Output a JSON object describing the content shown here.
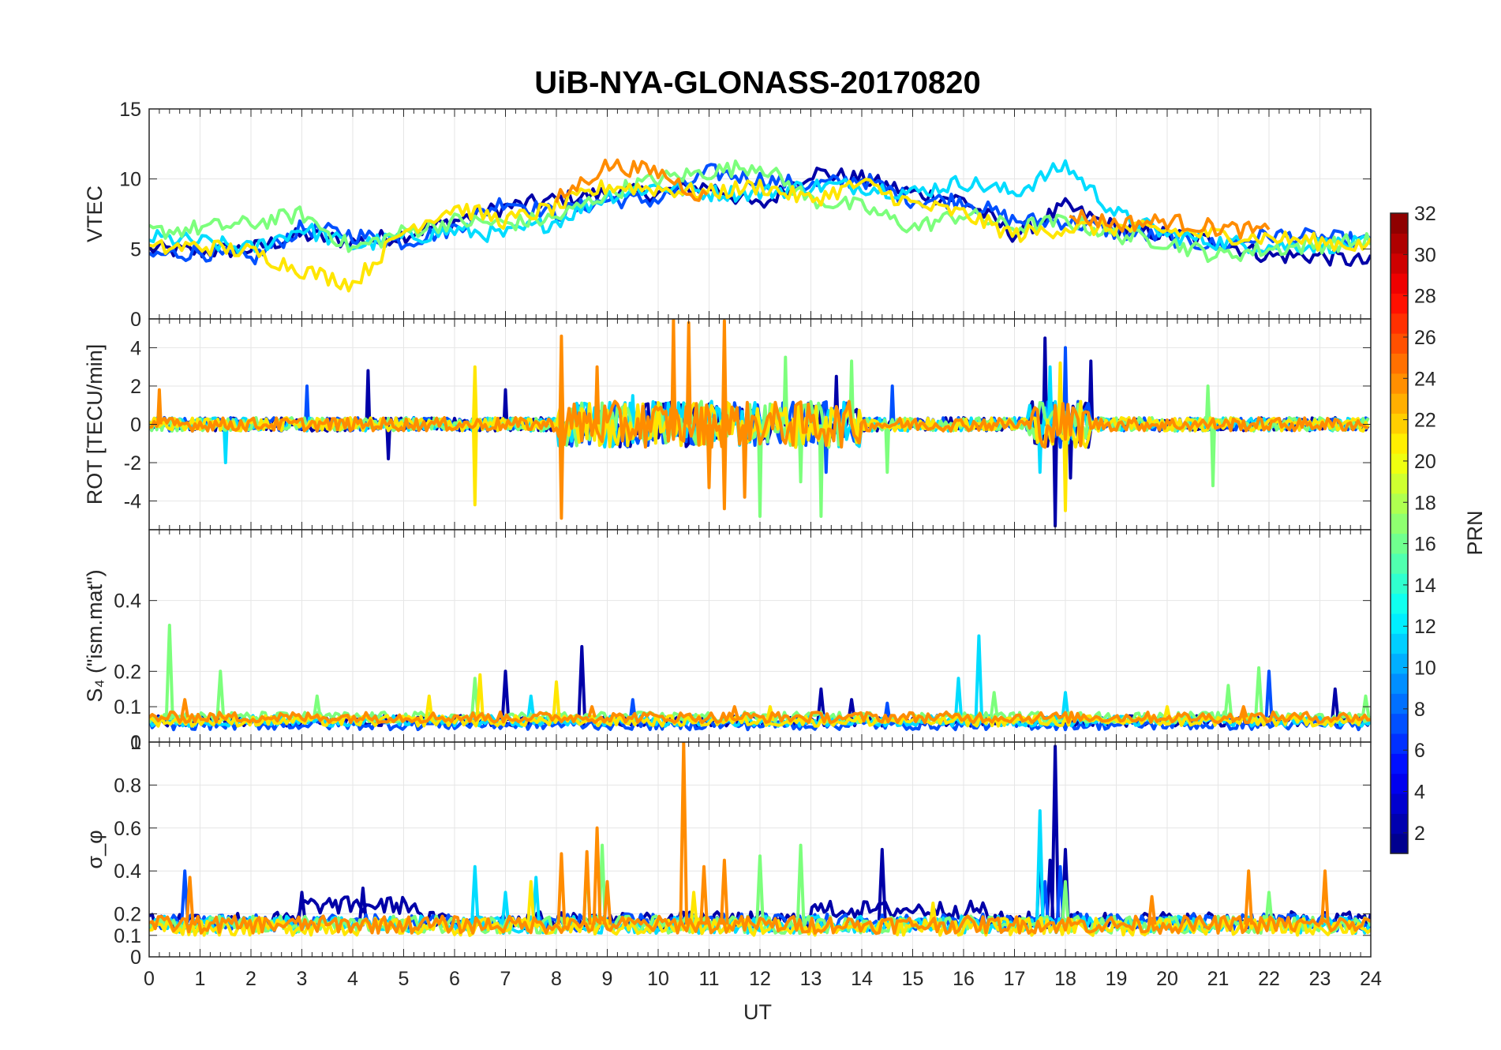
{
  "chart_data": {
    "type": "line",
    "title": "UiB-NYA-GLONASS-20170820",
    "xlabel": "UT",
    "xlim": [
      0,
      24
    ],
    "xticks": [
      "0",
      "1",
      "2",
      "3",
      "4",
      "5",
      "6",
      "7",
      "8",
      "9",
      "10",
      "11",
      "12",
      "13",
      "14",
      "15",
      "16",
      "17",
      "18",
      "19",
      "20",
      "21",
      "22",
      "23",
      "24"
    ],
    "grid": true,
    "colorbar": {
      "label": "PRN",
      "colormap": "jet",
      "range": [
        1,
        32
      ],
      "ticks": [
        "2",
        "4",
        "6",
        "8",
        "10",
        "12",
        "14",
        "16",
        "18",
        "20",
        "22",
        "24",
        "26",
        "28",
        "30",
        "32"
      ]
    },
    "panels": [
      {
        "ylabel": "VTEC",
        "ylim": [
          0,
          15
        ],
        "yticks": [
          "0",
          "5",
          "10",
          "15"
        ],
        "series": [
          {
            "color": "#0000A8",
            "x": [
              0,
              1,
              2,
              3,
              4,
              5,
              6,
              7,
              8,
              9,
              10,
              11,
              12,
              13,
              14,
              15,
              16,
              17,
              18,
              19,
              20,
              21,
              22,
              23,
              24
            ],
            "y": [
              5,
              4.8,
              5,
              6,
              5.5,
              6,
              7,
              8,
              8.5,
              9,
              9,
              9.5,
              8,
              10.5,
              10,
              9,
              8.5,
              6,
              8,
              6.5,
              6,
              5.5,
              4.5,
              4.5,
              4
            ]
          },
          {
            "color": "#0050FF",
            "x": [
              0,
              1,
              2,
              3,
              4,
              5,
              6,
              7,
              8,
              9,
              10,
              11,
              12,
              13,
              14,
              15,
              16,
              17,
              18,
              19,
              20,
              21,
              22,
              23,
              24
            ],
            "y": [
              4.5,
              4.8,
              4.2,
              6.5,
              6,
              5.5,
              6.5,
              8.5,
              7.5,
              8.5,
              8.5,
              10.5,
              10,
              9.5,
              10,
              8.5,
              8.5,
              7,
              7,
              6.2,
              5.8,
              5.2,
              6,
              5.8,
              5.5
            ]
          },
          {
            "color": "#00DCFF",
            "x": [
              0,
              1,
              2,
              3,
              4,
              5,
              6,
              7,
              8,
              9,
              10,
              11,
              12,
              13,
              14,
              15,
              16,
              17,
              18,
              19,
              20,
              21,
              22,
              23,
              24
            ],
            "y": [
              5.8,
              5.5,
              5,
              6.5,
              5.2,
              5.8,
              6.3,
              6,
              7,
              8.8,
              9.5,
              9,
              9,
              9.5,
              9.5,
              9,
              9.8,
              9,
              11,
              7.5,
              6,
              5.5,
              5.2,
              5.3,
              5.3
            ]
          },
          {
            "color": "#7CFF7C",
            "x": [
              0,
              1,
              2,
              3,
              4,
              5,
              6,
              7,
              8,
              9,
              10,
              11,
              12,
              13,
              14,
              15,
              16,
              17,
              18,
              19,
              20,
              21,
              22,
              23,
              24
            ],
            "y": [
              6.2,
              6.5,
              6.8,
              7.5,
              5,
              6.2,
              7,
              6.8,
              7.2,
              9,
              10,
              10.5,
              11,
              8.5,
              8,
              6.5,
              7.5,
              6.5,
              7,
              6,
              5.5,
              4.5,
              5,
              5.3,
              5.6
            ]
          },
          {
            "color": "#FFE600",
            "x": [
              0,
              1,
              2,
              3,
              4,
              5,
              6,
              7,
              8,
              9,
              10,
              11,
              12,
              13,
              14,
              15,
              16,
              17,
              18,
              19,
              20,
              21,
              22,
              23,
              24
            ],
            "y": [
              5,
              5.2,
              4.8,
              3.5,
              2.5,
              6.3,
              8,
              7,
              8,
              9.5,
              9.3,
              9,
              9.5,
              8.5,
              9.7,
              8.2,
              7.5,
              6,
              6.5,
              6.5,
              6.3,
              6,
              5.8,
              5.5,
              5.2
            ]
          },
          {
            "color": "#FF8C00",
            "x": [
              0,
              1,
              2,
              3,
              4,
              5,
              6,
              7,
              8,
              9,
              10,
              11,
              12,
              13,
              14,
              15,
              16,
              17,
              18,
              19,
              20,
              21,
              22,
              23,
              24
            ],
            "y": [
              null,
              null,
              null,
              null,
              null,
              null,
              null,
              null,
              8.5,
              11,
              10.5,
              8.5,
              null,
              null,
              null,
              null,
              null,
              null,
              7.5,
              6.8,
              7,
              6.5,
              6.2,
              null,
              null
            ]
          }
        ]
      },
      {
        "ylabel": "ROT [TECU/min]",
        "ylim": [
          -5.5,
          5.5
        ],
        "yticks": [
          "-4",
          "-2",
          "0",
          "2",
          "4"
        ],
        "series": [
          {
            "color": "#0000A8",
            "spikes": [
              [
                4.3,
                2.8
              ],
              [
                4.7,
                -1.8
              ],
              [
                7.0,
                1.8
              ],
              [
                13.5,
                2.5
              ],
              [
                17.6,
                4.5
              ],
              [
                17.8,
                -5.3
              ],
              [
                18.5,
                3.3
              ],
              [
                18.1,
                -2.8
              ]
            ]
          },
          {
            "color": "#0050FF",
            "spikes": [
              [
                3.1,
                2.0
              ],
              [
                8.8,
                2.3
              ],
              [
                11.3,
                3.0
              ],
              [
                13.3,
                -2.5
              ],
              [
                14.6,
                2.0
              ],
              [
                18.0,
                4.0
              ]
            ]
          },
          {
            "color": "#00DCFF",
            "spikes": [
              [
                1.5,
                -2.0
              ],
              [
                9.5,
                1.5
              ],
              [
                17.5,
                -2.5
              ],
              [
                17.7,
                3.0
              ]
            ]
          },
          {
            "color": "#7CFF7C",
            "spikes": [
              [
                12.0,
                -4.8
              ],
              [
                12.5,
                3.5
              ],
              [
                12.8,
                -3.0
              ],
              [
                13.2,
                -4.8
              ],
              [
                13.8,
                3.3
              ],
              [
                14.5,
                -2.5
              ],
              [
                20.8,
                2.0
              ],
              [
                20.9,
                -3.2
              ]
            ]
          },
          {
            "color": "#FFE600",
            "spikes": [
              [
                6.4,
                -4.2
              ],
              [
                6.4,
                3.0
              ],
              [
                10.6,
                1.5
              ],
              [
                17.9,
                3.2
              ],
              [
                18.0,
                -4.5
              ]
            ]
          },
          {
            "color": "#FF8C00",
            "spikes": [
              [
                0.2,
                1.8
              ],
              [
                8.1,
                4.6
              ],
              [
                8.1,
                -4.9
              ],
              [
                8.8,
                3.0
              ],
              [
                10.3,
                5.5
              ],
              [
                10.6,
                5.3
              ],
              [
                11.0,
                -3.3
              ],
              [
                11.3,
                5.4
              ],
              [
                11.3,
                -4.4
              ],
              [
                11.7,
                -3.8
              ]
            ]
          }
        ]
      },
      {
        "ylabel": "S₄ (\"ism.mat\")",
        "ylim": [
          0,
          0.6
        ],
        "yticks": [
          "0",
          "0.1",
          "0.2",
          "0.4"
        ],
        "series": [
          {
            "color": "#0000A8",
            "base": 0.06,
            "spikes": [
              [
                7.0,
                0.2
              ],
              [
                8.5,
                0.27
              ],
              [
                13.2,
                0.15
              ],
              [
                13.8,
                0.12
              ],
              [
                23.3,
                0.15
              ]
            ]
          },
          {
            "color": "#0050FF",
            "base": 0.05,
            "spikes": [
              [
                9.5,
                0.12
              ],
              [
                14.5,
                0.11
              ],
              [
                22.0,
                0.2
              ]
            ]
          },
          {
            "color": "#00DCFF",
            "base": 0.06,
            "spikes": [
              [
                7.5,
                0.13
              ],
              [
                15.9,
                0.18
              ],
              [
                16.3,
                0.3
              ],
              [
                18.0,
                0.14
              ]
            ]
          },
          {
            "color": "#7CFF7C",
            "base": 0.07,
            "spikes": [
              [
                0.4,
                0.33
              ],
              [
                1.4,
                0.2
              ],
              [
                3.3,
                0.13
              ],
              [
                6.4,
                0.18
              ],
              [
                16.6,
                0.14
              ],
              [
                21.2,
                0.16
              ],
              [
                21.8,
                0.21
              ],
              [
                23.9,
                0.13
              ]
            ]
          },
          {
            "color": "#FFE600",
            "base": 0.06,
            "spikes": [
              [
                5.5,
                0.13
              ],
              [
                6.5,
                0.19
              ],
              [
                8.0,
                0.17
              ],
              [
                12.2,
                0.1
              ],
              [
                20.0,
                0.1
              ]
            ]
          },
          {
            "color": "#FF8C00",
            "base": 0.07,
            "spikes": [
              [
                0.7,
                0.12
              ],
              [
                8.7,
                0.1
              ],
              [
                11.5,
                0.1
              ],
              [
                21.5,
                0.1
              ]
            ]
          }
        ]
      },
      {
        "ylabel": "σ_φ",
        "ylim": [
          0,
          1
        ],
        "yticks": [
          "0",
          "0.1",
          "0.2",
          "0.4",
          "0.6",
          "0.8",
          "1"
        ],
        "series": [
          {
            "color": "#0000A8",
            "base": 0.17,
            "high": [
              [
                3,
                5.3,
                0.24
              ],
              [
                13,
                16.5,
                0.22
              ]
            ],
            "spikes": [
              [
                3.0,
                0.3
              ],
              [
                4.2,
                0.32
              ],
              [
                14.4,
                0.5
              ],
              [
                17.5,
                0.5
              ],
              [
                17.8,
                0.98
              ],
              [
                18.0,
                0.5
              ],
              [
                17.7,
                0.45
              ]
            ]
          },
          {
            "color": "#0050FF",
            "base": 0.16,
            "spikes": [
              [
                0.7,
                0.4
              ],
              [
                17.6,
                0.35
              ],
              [
                17.9,
                0.42
              ]
            ]
          },
          {
            "color": "#00DCFF",
            "base": 0.15,
            "spikes": [
              [
                6.4,
                0.42
              ],
              [
                7.6,
                0.37
              ],
              [
                17.5,
                0.68
              ],
              [
                7.0,
                0.3
              ]
            ]
          },
          {
            "color": "#7CFF7C",
            "base": 0.15,
            "spikes": [
              [
                8.6,
                0.45
              ],
              [
                8.9,
                0.52
              ],
              [
                12.0,
                0.47
              ],
              [
                12.8,
                0.52
              ],
              [
                18.0,
                0.35
              ],
              [
                22.0,
                0.3
              ]
            ]
          },
          {
            "color": "#FFE600",
            "base": 0.14,
            "spikes": [
              [
                7.5,
                0.35
              ],
              [
                10.7,
                0.3
              ],
              [
                15.4,
                0.25
              ]
            ]
          },
          {
            "color": "#FF8C00",
            "base": 0.15,
            "spikes": [
              [
                0.8,
                0.37
              ],
              [
                8.1,
                0.48
              ],
              [
                8.6,
                0.49
              ],
              [
                8.8,
                0.6
              ],
              [
                9.0,
                0.35
              ],
              [
                10.5,
                1.0
              ],
              [
                11.3,
                0.45
              ],
              [
                10.9,
                0.42
              ],
              [
                19.7,
                0.28
              ],
              [
                21.6,
                0.4
              ],
              [
                23.1,
                0.4
              ]
            ]
          }
        ]
      }
    ]
  }
}
